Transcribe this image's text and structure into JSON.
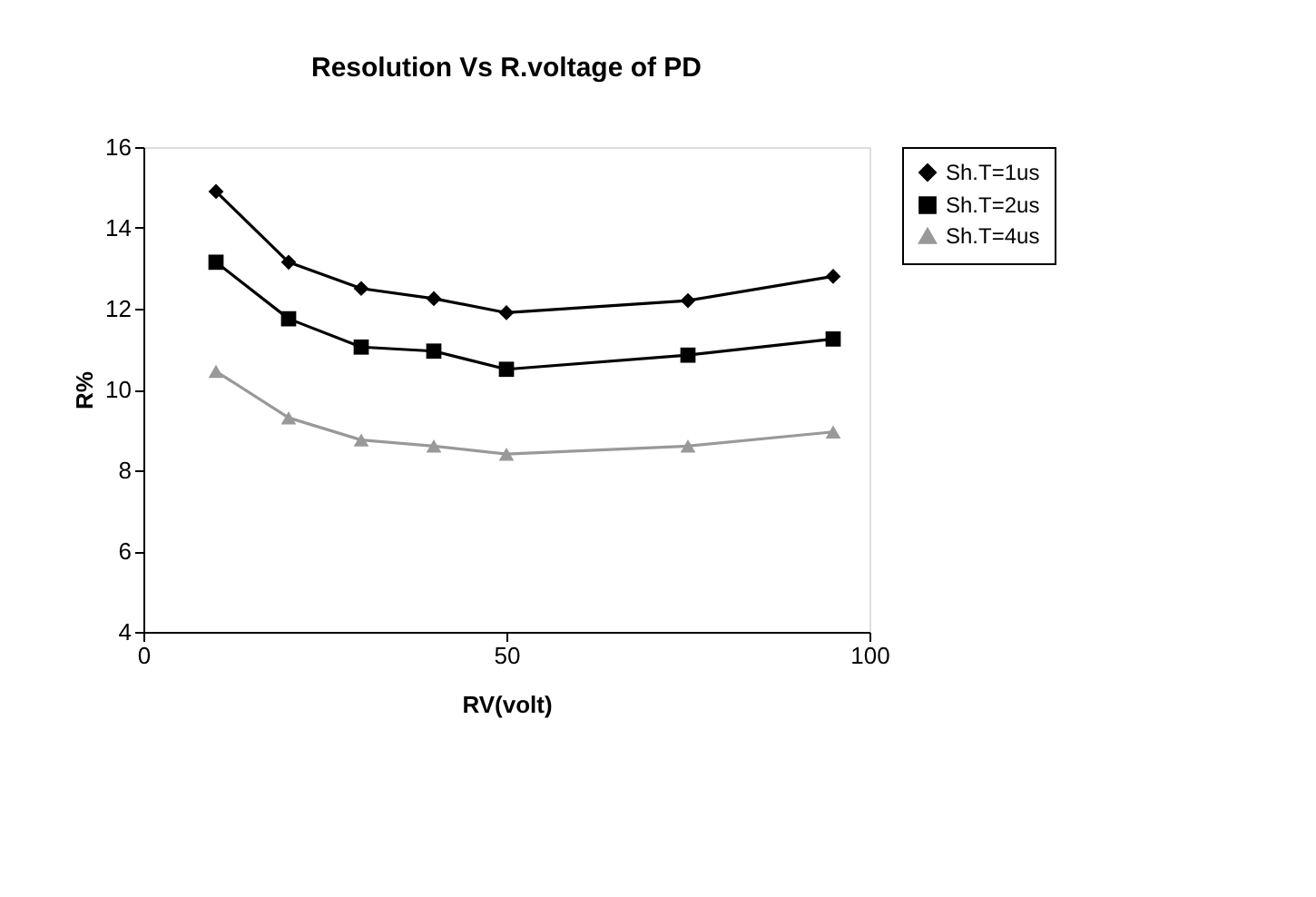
{
  "chart_data": {
    "type": "line",
    "title": "Resolution Vs R.voltage of PD",
    "xlabel": "RV(volt)",
    "ylabel": "R%",
    "x": [
      10,
      20,
      30,
      40,
      50,
      75,
      95
    ],
    "series": [
      {
        "name": "Sh.T=1us",
        "color": "#000000",
        "marker": "diamond",
        "values": [
          14.9,
          13.15,
          12.5,
          12.25,
          11.9,
          12.2,
          12.8
        ]
      },
      {
        "name": "Sh.T=2us",
        "color": "#000000",
        "marker": "square",
        "values": [
          13.15,
          11.75,
          11.05,
          10.95,
          10.5,
          10.85,
          11.25
        ]
      },
      {
        "name": "Sh.T=4us",
        "color": "#999999",
        "marker": "triangle",
        "values": [
          10.45,
          9.3,
          8.75,
          8.6,
          8.4,
          8.6,
          8.95
        ]
      }
    ],
    "xlim": [
      0,
      100
    ],
    "xticks": [
      0,
      50,
      100
    ],
    "ylim": [
      4,
      16
    ],
    "yticks": [
      4,
      6,
      8,
      10,
      12,
      14,
      16
    ],
    "grid": false,
    "legend": "right",
    "line_style": "solid"
  }
}
